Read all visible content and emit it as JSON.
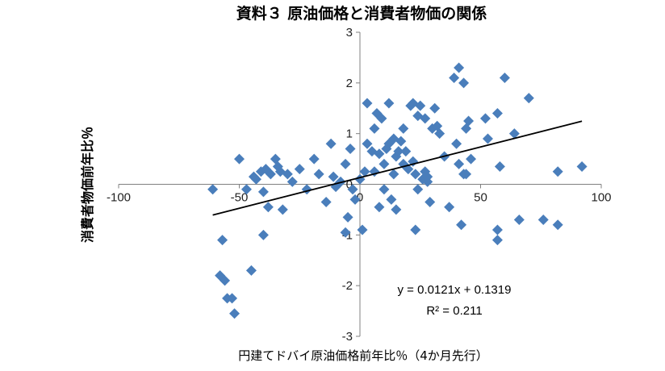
{
  "chart_data": {
    "type": "scatter",
    "title": "資料３ 原油価格と消費者物価の関係",
    "xlabel": "円建てドバイ原油価格前年比％（4か月先行）",
    "ylabel": "消費者物価前年比％",
    "xlim": [
      -100,
      100
    ],
    "ylim": [
      -3,
      3
    ],
    "x_ticks": [
      -100,
      -50,
      0,
      50,
      100
    ],
    "y_ticks": [
      -3,
      -2,
      -1,
      0,
      1,
      2,
      3
    ],
    "grid": false,
    "marker": "diamond",
    "color": "#4a7ebb",
    "trendline": {
      "slope": 0.0121,
      "intercept": 0.1319
    },
    "equation": "y = 0.0121x + 0.1319",
    "r_squared": "R² = 0.211",
    "points": [
      [
        -61,
        -0.1
      ],
      [
        -57,
        -1.1
      ],
      [
        -58,
        -1.8
      ],
      [
        -56,
        -1.9
      ],
      [
        -55,
        -2.25
      ],
      [
        -53,
        -2.25
      ],
      [
        -52,
        -2.55
      ],
      [
        -50,
        0.5
      ],
      [
        -47,
        -0.1
      ],
      [
        -45,
        -1.7
      ],
      [
        -44,
        0.15
      ],
      [
        -43,
        0.1
      ],
      [
        -41,
        0.25
      ],
      [
        -40,
        -0.15
      ],
      [
        -39,
        0.3
      ],
      [
        -38,
        -0.45
      ],
      [
        -37,
        0.2
      ],
      [
        -35,
        0.5
      ],
      [
        -34,
        0.35
      ],
      [
        -33,
        0.25
      ],
      [
        -32,
        -0.5
      ],
      [
        -40,
        -1.0
      ],
      [
        -30,
        0.2
      ],
      [
        -28,
        0.05
      ],
      [
        -25,
        0.3
      ],
      [
        -22,
        -0.1
      ],
      [
        -19,
        0.5
      ],
      [
        -17,
        0.2
      ],
      [
        -14,
        -0.35
      ],
      [
        -12,
        0.8
      ],
      [
        -11,
        0.15
      ],
      [
        -10,
        -0.05
      ],
      [
        -8,
        0.05
      ],
      [
        -6,
        0.4
      ],
      [
        -4,
        0.7
      ],
      [
        -5,
        -0.65
      ],
      [
        -6,
        -0.95
      ],
      [
        -2,
        -0.3
      ],
      [
        -3,
        -0.1
      ],
      [
        0,
        0.1
      ],
      [
        1,
        -0.9
      ],
      [
        2,
        0.25
      ],
      [
        3,
        0.8
      ],
      [
        3,
        1.6
      ],
      [
        5,
        0.65
      ],
      [
        6,
        1.1
      ],
      [
        6,
        0.25
      ],
      [
        7,
        1.4
      ],
      [
        8,
        0.6
      ],
      [
        8,
        -0.45
      ],
      [
        9,
        1.3
      ],
      [
        10,
        0.4
      ],
      [
        10,
        -0.1
      ],
      [
        11,
        0.7
      ],
      [
        12,
        0.8
      ],
      [
        12,
        1.6
      ],
      [
        13,
        -0.3
      ],
      [
        14,
        0.9
      ],
      [
        14,
        0.2
      ],
      [
        15,
        -0.5
      ],
      [
        15,
        0.55
      ],
      [
        16,
        0.65
      ],
      [
        17,
        0.85
      ],
      [
        18,
        0.4
      ],
      [
        18,
        1.1
      ],
      [
        19,
        0.65
      ],
      [
        20,
        0.3
      ],
      [
        21,
        1.55
      ],
      [
        22,
        1.6
      ],
      [
        22,
        0.45
      ],
      [
        23,
        0.2
      ],
      [
        23,
        -0.9
      ],
      [
        24,
        1.35
      ],
      [
        24,
        -0.1
      ],
      [
        25,
        1.55
      ],
      [
        26,
        0.1
      ],
      [
        27,
        1.3
      ],
      [
        27,
        0.25
      ],
      [
        28,
        0.05
      ],
      [
        28,
        0.15
      ],
      [
        29,
        -0.35
      ],
      [
        30,
        1.1
      ],
      [
        31,
        1.5
      ],
      [
        32,
        1.15
      ],
      [
        33,
        1.0
      ],
      [
        35,
        0.55
      ],
      [
        37,
        -0.45
      ],
      [
        39,
        2.1
      ],
      [
        40,
        0.8
      ],
      [
        41,
        2.3
      ],
      [
        41,
        0.4
      ],
      [
        42,
        -0.8
      ],
      [
        43,
        0.2
      ],
      [
        43,
        2.0
      ],
      [
        44,
        1.1
      ],
      [
        44,
        0.2
      ],
      [
        45,
        1.25
      ],
      [
        46,
        0.5
      ],
      [
        52,
        1.3
      ],
      [
        53,
        0.9
      ],
      [
        57,
        -0.9
      ],
      [
        57,
        -1.1
      ],
      [
        57,
        1.4
      ],
      [
        58,
        0.35
      ],
      [
        60,
        2.1
      ],
      [
        64,
        1.0
      ],
      [
        66,
        -0.7
      ],
      [
        70,
        1.7
      ],
      [
        76,
        -0.7
      ],
      [
        82,
        -0.8
      ],
      [
        82,
        0.25
      ],
      [
        92,
        0.35
      ]
    ]
  }
}
